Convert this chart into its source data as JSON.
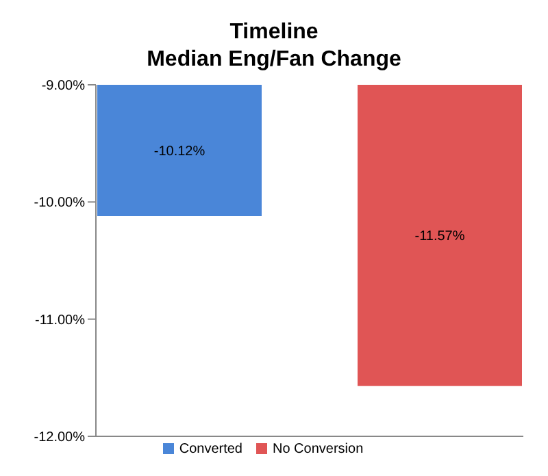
{
  "chart_data": {
    "type": "bar",
    "title": "Timeline",
    "subtitle": "Median Eng/Fan Change",
    "categories": [
      null
    ],
    "series": [
      {
        "name": "Converted",
        "color": "#4a86d8",
        "values": [
          -10.12
        ],
        "value_labels": [
          "-10.12%"
        ]
      },
      {
        "name": "No Conversion",
        "color": "#e05555",
        "values": [
          -11.57
        ],
        "value_labels": [
          "-11.57%"
        ]
      }
    ],
    "ylim": [
      -12,
      -9
    ],
    "yticks": [
      {
        "value": -12,
        "label": "-12.00%"
      },
      {
        "value": -11,
        "label": "-11.00%"
      },
      {
        "value": -10,
        "label": "-10.00%"
      },
      {
        "value": -9,
        "label": "-9.00%"
      }
    ],
    "grid": false,
    "legend": "bottom"
  }
}
